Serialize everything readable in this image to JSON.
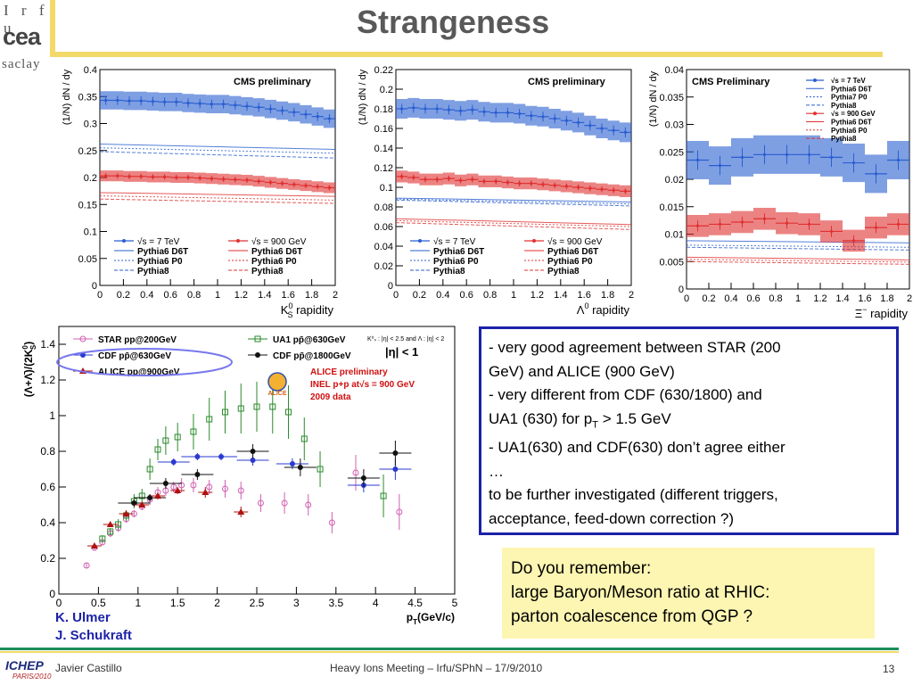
{
  "header": {
    "logo_line1": "I r f u",
    "logo_line2": "cea",
    "logo_line3": "saclay",
    "title": "Strangeness"
  },
  "colors": {
    "gold": "#f2d96a",
    "blue_band": "#3a6fd0",
    "red_band": "#f07070",
    "box_border": "#1c22a8",
    "note_bg": "#fdf6b2"
  },
  "chart_data": [
    {
      "type": "line",
      "label": "CMS preliminary",
      "xlabel": "K",
      "xlabel_sup": "0",
      "xlabel_sub": "S",
      "xlabel_rest": "rapidity",
      "ylabel": "(1/N) dN / dy",
      "xlim": [
        0,
        2
      ],
      "ylim": [
        0,
        0.4
      ],
      "xticks": [
        "0",
        "0.2",
        "0.4",
        "0.6",
        "0.8",
        "1",
        "1.2",
        "1.4",
        "1.6",
        "1.8",
        "2"
      ],
      "yticks": [
        "0",
        "0.05",
        "0.1",
        "0.15",
        "0.2",
        "0.25",
        "0.3",
        "0.35",
        "0.4"
      ],
      "legend_left": [
        "√s = 7 TeV",
        "Pythia6 D6T",
        "Pythia6 P0",
        "Pythia8"
      ],
      "legend_right": [
        "√s = 900 GeV",
        "Pythia6 D6T",
        "Pythia6 P0",
        "Pythia8"
      ],
      "series": [
        {
          "name": "√s = 7 TeV",
          "kind": "data_band",
          "color": "#2a5fd0",
          "band": 0.017,
          "x": [
            0.05,
            0.15,
            0.25,
            0.35,
            0.45,
            0.55,
            0.65,
            0.75,
            0.85,
            0.95,
            1.05,
            1.15,
            1.25,
            1.35,
            1.45,
            1.55,
            1.65,
            1.75,
            1.85,
            1.95
          ],
          "y": [
            0.343,
            0.343,
            0.342,
            0.342,
            0.341,
            0.34,
            0.34,
            0.338,
            0.337,
            0.336,
            0.336,
            0.334,
            0.332,
            0.33,
            0.327,
            0.324,
            0.321,
            0.317,
            0.313,
            0.309
          ]
        },
        {
          "name": "√s = 900 GeV",
          "kind": "data_band",
          "color": "#e03030",
          "band": 0.01,
          "x": [
            0.05,
            0.15,
            0.25,
            0.35,
            0.45,
            0.55,
            0.65,
            0.75,
            0.85,
            0.95,
            1.05,
            1.15,
            1.25,
            1.35,
            1.45,
            1.55,
            1.65,
            1.75,
            1.85,
            1.95
          ],
          "y": [
            0.203,
            0.203,
            0.202,
            0.202,
            0.201,
            0.201,
            0.2,
            0.2,
            0.199,
            0.198,
            0.197,
            0.196,
            0.195,
            0.193,
            0.191,
            0.189,
            0.187,
            0.185,
            0.183,
            0.181
          ]
        },
        {
          "name": "7TeV D6T",
          "kind": "model",
          "color": "#2a5fd0",
          "dash": "",
          "x": [
            0,
            2
          ],
          "y": [
            0.262,
            0.252
          ]
        },
        {
          "name": "7TeV P0",
          "kind": "model",
          "color": "#2a5fd0",
          "dash": "2,2",
          "x": [
            0,
            2
          ],
          "y": [
            0.255,
            0.245
          ]
        },
        {
          "name": "7TeV P8",
          "kind": "model",
          "color": "#2a5fd0",
          "dash": "4,2",
          "x": [
            0,
            2
          ],
          "y": [
            0.248,
            0.236
          ]
        },
        {
          "name": "900 D6T",
          "kind": "model",
          "color": "#e03030",
          "dash": "",
          "x": [
            0,
            2
          ],
          "y": [
            0.172,
            0.165
          ]
        },
        {
          "name": "900 P0",
          "kind": "model",
          "color": "#e03030",
          "dash": "2,2",
          "x": [
            0,
            2
          ],
          "y": [
            0.166,
            0.158
          ]
        },
        {
          "name": "900 P8",
          "kind": "model",
          "color": "#e03030",
          "dash": "4,2",
          "x": [
            0,
            2
          ],
          "y": [
            0.16,
            0.152
          ]
        }
      ]
    },
    {
      "type": "line",
      "label": "CMS preliminary",
      "xlabel": "Λ",
      "xlabel_sup": "0",
      "xlabel_sub": "",
      "xlabel_rest": "rapidity",
      "ylabel": "(1/N) dN / dy",
      "xlim": [
        0,
        2
      ],
      "ylim": [
        0,
        0.22
      ],
      "xticks": [
        "0",
        "0.2",
        "0.4",
        "0.6",
        "0.8",
        "1",
        "1.2",
        "1.4",
        "1.6",
        "1.8",
        "2"
      ],
      "yticks": [
        "0",
        "0.02",
        "0.04",
        "0.06",
        "0.08",
        "0.1",
        "0.12",
        "0.14",
        "0.16",
        "0.18",
        "0.2",
        "0.22"
      ],
      "legend_left": [
        "√s = 7 TeV",
        "Pythia6 D6T",
        "Pythia6 P0",
        "Pythia8"
      ],
      "legend_right": [
        "√s = 900 GeV",
        "Pythia6 D6T",
        "Pythia6 P0",
        "Pythia8"
      ],
      "series": [
        {
          "name": "√s = 7 TeV",
          "kind": "data_band",
          "color": "#2a5fd0",
          "band": 0.01,
          "x": [
            0.05,
            0.15,
            0.25,
            0.35,
            0.45,
            0.55,
            0.65,
            0.75,
            0.85,
            0.95,
            1.05,
            1.15,
            1.25,
            1.35,
            1.45,
            1.55,
            1.65,
            1.75,
            1.85,
            1.95
          ],
          "y": [
            0.18,
            0.181,
            0.18,
            0.18,
            0.179,
            0.178,
            0.179,
            0.177,
            0.176,
            0.176,
            0.175,
            0.173,
            0.172,
            0.17,
            0.168,
            0.166,
            0.163,
            0.16,
            0.158,
            0.156
          ]
        },
        {
          "name": "√s = 900 GeV",
          "kind": "data_band",
          "color": "#e03030",
          "band": 0.006,
          "x": [
            0.05,
            0.15,
            0.25,
            0.35,
            0.45,
            0.55,
            0.65,
            0.75,
            0.85,
            0.95,
            1.05,
            1.15,
            1.25,
            1.35,
            1.45,
            1.55,
            1.65,
            1.75,
            1.85,
            1.95
          ],
          "y": [
            0.111,
            0.11,
            0.108,
            0.108,
            0.109,
            0.107,
            0.108,
            0.106,
            0.106,
            0.105,
            0.104,
            0.104,
            0.103,
            0.102,
            0.101,
            0.1,
            0.099,
            0.098,
            0.097,
            0.096
          ]
        },
        {
          "name": "7TeV D6T",
          "kind": "model",
          "color": "#2a5fd0",
          "dash": "",
          "x": [
            0,
            2
          ],
          "y": [
            0.089,
            0.085
          ]
        },
        {
          "name": "7TeV P0",
          "kind": "model",
          "color": "#2a5fd0",
          "dash": "2,2",
          "x": [
            0,
            2
          ],
          "y": [
            0.088,
            0.083
          ]
        },
        {
          "name": "7TeV P8",
          "kind": "model",
          "color": "#2a5fd0",
          "dash": "4,2",
          "x": [
            0,
            2
          ],
          "y": [
            0.087,
            0.081
          ]
        },
        {
          "name": "900 D6T",
          "kind": "model",
          "color": "#e03030",
          "dash": "",
          "x": [
            0,
            2
          ],
          "y": [
            0.068,
            0.062
          ]
        },
        {
          "name": "900 P0",
          "kind": "model",
          "color": "#e03030",
          "dash": "2,2",
          "x": [
            0,
            2
          ],
          "y": [
            0.066,
            0.06
          ]
        },
        {
          "name": "900 P8",
          "kind": "model",
          "color": "#e03030",
          "dash": "4,2",
          "x": [
            0,
            2
          ],
          "y": [
            0.064,
            0.057
          ]
        }
      ]
    },
    {
      "type": "line",
      "label": "CMS Preliminary",
      "xlabel": "Ξ",
      "xlabel_sup": "−",
      "xlabel_sub": "",
      "xlabel_rest": "rapidity",
      "ylabel": "(1/N) dN / dy",
      "xlim": [
        0,
        2
      ],
      "ylim": [
        0,
        0.04
      ],
      "xticks": [
        "0",
        "0.2",
        "0.4",
        "0.6",
        "0.8",
        "1",
        "1.2",
        "1.4",
        "1.6",
        "1.8",
        "2"
      ],
      "yticks": [
        "0",
        "0.005",
        "0.01",
        "0.015",
        "0.02",
        "0.025",
        "0.03",
        "0.035",
        "0.04"
      ],
      "legend_top": [
        "√s = 7 TeV",
        "Pythia6 D6T",
        "Pythia7 P0",
        "Pythia8",
        "√s = 900 GeV",
        "Pythia6 D6T",
        "Pythia6 P0",
        "Pythia8"
      ],
      "series": [
        {
          "name": "√s = 7 TeV",
          "kind": "data_band",
          "color": "#2a5fd0",
          "band": 0.0035,
          "x": [
            0.1,
            0.3,
            0.5,
            0.7,
            0.9,
            1.1,
            1.3,
            1.5,
            1.7,
            1.9
          ],
          "y": [
            0.0235,
            0.0225,
            0.024,
            0.0245,
            0.0245,
            0.0245,
            0.024,
            0.023,
            0.021,
            0.0235
          ]
        },
        {
          "name": "√s = 900 GeV",
          "kind": "data_band",
          "color": "#e03030",
          "band": 0.002,
          "x": [
            0.1,
            0.3,
            0.5,
            0.7,
            0.9,
            1.1,
            1.3,
            1.5,
            1.7,
            1.9
          ],
          "y": [
            0.0115,
            0.0118,
            0.0122,
            0.0128,
            0.012,
            0.0118,
            0.0105,
            0.0088,
            0.0112,
            0.0118
          ]
        },
        {
          "name": "7TeV D6T",
          "kind": "model",
          "color": "#2a5fd0",
          "dash": "",
          "x": [
            0,
            2
          ],
          "y": [
            0.0088,
            0.0084
          ]
        },
        {
          "name": "7TeV P0",
          "kind": "model",
          "color": "#2a5fd0",
          "dash": "2,2",
          "x": [
            0,
            2
          ],
          "y": [
            0.008,
            0.0076
          ]
        },
        {
          "name": "7TeV P8",
          "kind": "model",
          "color": "#2a5fd0",
          "dash": "4,2",
          "x": [
            0,
            2
          ],
          "y": [
            0.0076,
            0.0071
          ]
        },
        {
          "name": "900 D6T",
          "kind": "model",
          "color": "#e03030",
          "dash": "",
          "x": [
            0,
            2
          ],
          "y": [
            0.0058,
            0.0053
          ]
        },
        {
          "name": "900 P0",
          "kind": "model",
          "color": "#e03030",
          "dash": "2,2",
          "x": [
            0,
            2
          ],
          "y": [
            0.0054,
            0.0049
          ]
        },
        {
          "name": "900 P8",
          "kind": "model",
          "color": "#e03030",
          "dash": "4,2",
          "x": [
            0,
            2
          ],
          "y": [
            0.005,
            0.0045
          ]
        }
      ]
    },
    {
      "type": "scatter",
      "xlabel": "p",
      "xlabel_sub": "T",
      "xlabel_rest": "(GeV/c)",
      "ylabel": "(Λ+Λ̄)/(2K",
      "ylabel_sub": "S",
      "ylabel_sup": "0",
      "xlim": [
        0,
        5
      ],
      "ylim": [
        0,
        1.5
      ],
      "xticks": [
        "0",
        "0.5",
        "1",
        "1.5",
        "2",
        "2.5",
        "3",
        "3.5",
        "4",
        "4.5",
        "5"
      ],
      "yticks": [
        "0",
        "0.2",
        "0.4",
        "0.6",
        "0.8",
        "1",
        "1.2",
        "1.4"
      ],
      "legend": [
        "STAR pp@200GeV",
        "CDF pp̄@630GeV",
        "ALICE pp@900GeV",
        "UA1 pp̄@630GeV",
        "CDF pp̄@1800GeV"
      ],
      "cut_note": "K⁰ₛ : |η| < 2.5 and Λ : |η| < 2",
      "eta_note": "|η| < 1",
      "alice_lines": [
        "ALICE preliminary",
        "INEL p+p at√s = 900 GeV",
        "2009 data"
      ],
      "alice_logo": "ALICE",
      "series": [
        {
          "name": "STAR pp@200GeV",
          "marker": "circle-open",
          "color": "#d060b0",
          "x": [
            0.35,
            0.45,
            0.55,
            0.65,
            0.75,
            0.85,
            0.95,
            1.05,
            1.15,
            1.25,
            1.35,
            1.45,
            1.55,
            1.7,
            1.9,
            2.1,
            2.3,
            2.55,
            2.85,
            3.15,
            3.45,
            3.75,
            4.3
          ],
          "y": [
            0.16,
            0.26,
            0.29,
            0.34,
            0.37,
            0.42,
            0.45,
            0.49,
            0.53,
            0.57,
            0.58,
            0.6,
            0.61,
            0.61,
            0.6,
            0.59,
            0.58,
            0.51,
            0.51,
            0.5,
            0.4,
            0.68,
            0.46
          ],
          "err": [
            0.015,
            0.015,
            0.015,
            0.02,
            0.02,
            0.02,
            0.02,
            0.02,
            0.03,
            0.03,
            0.03,
            0.03,
            0.04,
            0.04,
            0.04,
            0.05,
            0.05,
            0.05,
            0.06,
            0.06,
            0.06,
            0.1,
            0.1
          ]
        },
        {
          "name": "UA1 pp̄@630GeV",
          "marker": "square-open",
          "color": "#2a8a2a",
          "x": [
            0.55,
            0.65,
            0.75,
            0.85,
            0.95,
            1.05,
            1.15,
            1.25,
            1.35,
            1.5,
            1.7,
            1.9,
            2.1,
            2.3,
            2.5,
            2.7,
            2.9,
            3.1,
            3.3,
            4.1
          ],
          "y": [
            0.31,
            0.35,
            0.39,
            0.44,
            0.52,
            0.55,
            0.7,
            0.81,
            0.86,
            0.88,
            0.91,
            0.98,
            1.02,
            1.04,
            1.05,
            1.05,
            1.02,
            0.87,
            0.7,
            0.55
          ],
          "err": [
            0.02,
            0.02,
            0.03,
            0.03,
            0.04,
            0.04,
            0.06,
            0.06,
            0.08,
            0.08,
            0.1,
            0.12,
            0.12,
            0.14,
            0.14,
            0.15,
            0.15,
            0.12,
            0.1,
            0.12
          ]
        },
        {
          "name": "CDF pp̄@630GeV",
          "marker": "circle-filled",
          "color": "#2a3ad0",
          "x": [
            1.45,
            1.75,
            2.05,
            2.45,
            2.95,
            3.85,
            4.25
          ],
          "y": [
            0.74,
            0.77,
            0.77,
            0.75,
            0.73,
            0.61,
            0.7
          ],
          "err": [
            0.02,
            0.02,
            0.02,
            0.03,
            0.03,
            0.04,
            0.06
          ]
        },
        {
          "name": "CDF pp̄@1800GeV",
          "marker": "circle-filled",
          "color": "#111111",
          "x": [
            0.95,
            1.15,
            1.35,
            1.75,
            2.45,
            3.05,
            3.85,
            4.25
          ],
          "y": [
            0.51,
            0.54,
            0.62,
            0.67,
            0.8,
            0.71,
            0.65,
            0.79
          ],
          "err": [
            0.02,
            0.02,
            0.03,
            0.03,
            0.04,
            0.05,
            0.05,
            0.07
          ]
        },
        {
          "name": "ALICE pp@900GeV",
          "marker": "triangle-filled",
          "color": "#b01010",
          "x": [
            0.45,
            0.65,
            0.85,
            1.05,
            1.25,
            1.5,
            1.85,
            2.3
          ],
          "y": [
            0.27,
            0.39,
            0.45,
            0.5,
            0.55,
            0.58,
            0.57,
            0.46
          ],
          "err": [
            0.01,
            0.01,
            0.015,
            0.015,
            0.02,
            0.02,
            0.03,
            0.03
          ]
        }
      ]
    }
  ],
  "textbox": {
    "lines": [
      "- very good agreement between STAR (200",
      "GeV) and ALICE (900 GeV)",
      "- very different from CDF (630/1800) and",
      "UA1 (630) for  p",
      "- UA1(630) and CDF(630) don’t agree either",
      "…",
      "to be further investigated (different triggers,",
      "acceptance, feed-down correction ?)"
    ],
    "pt_sub": "T",
    "pt_rest": " > 1.5 GeV"
  },
  "note": {
    "lines": [
      "Do you remember:",
      "large Baryon/Meson ratio at RHIC:",
      "parton coalescence from QGP ?"
    ]
  },
  "authors": [
    "K. Ulmer",
    "J. Schukraft"
  ],
  "footer": {
    "logo_main": "ICHEP",
    "logo_sub": "PARIS/2010",
    "presenter": "Javier Castillo",
    "meeting": "Heavy Ions Meeting – Irfu/SPhN – 17/9/2010",
    "page": "13"
  }
}
